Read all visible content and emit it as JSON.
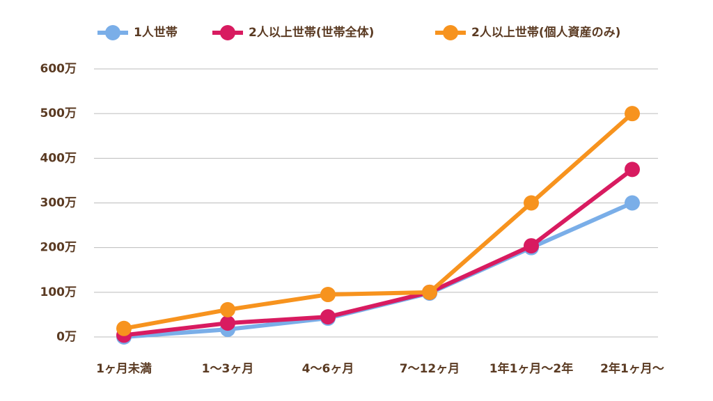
{
  "chart_data": {
    "type": "line",
    "categories": [
      "1ヶ月未満",
      "1〜3ヶ月",
      "4〜6ヶ月",
      "7〜12ヶ月",
      "1年1ヶ月〜2年",
      "2年1ヶ月〜"
    ],
    "series": [
      {
        "name": "1人世帯",
        "color": "#7aaee8",
        "values": [
          0,
          17,
          42,
          98,
          200,
          300
        ]
      },
      {
        "name": "2人以上世帯(世帯全体)",
        "color": "#d81b60",
        "values": [
          4,
          31,
          45,
          100,
          204,
          375
        ]
      },
      {
        "name": "2人以上世帯(個人資産のみ)",
        "color": "#f7931e",
        "values": [
          19,
          61,
          95,
          100,
          300,
          500
        ]
      }
    ],
    "ylim": [
      0,
      600
    ],
    "yticks": [
      {
        "value": 0,
        "label": "0万"
      },
      {
        "value": 100,
        "label": "100万"
      },
      {
        "value": 200,
        "label": "200万"
      },
      {
        "value": 300,
        "label": "300万"
      },
      {
        "value": 400,
        "label": "400万"
      },
      {
        "value": 500,
        "label": "500万"
      },
      {
        "value": 600,
        "label": "600万"
      }
    ],
    "grid": true
  }
}
